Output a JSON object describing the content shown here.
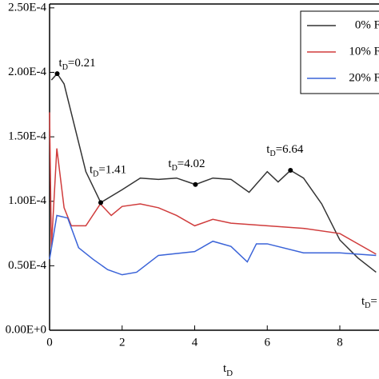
{
  "chart_data": {
    "type": "line",
    "x_label": {
      "base": "t",
      "sub": "D"
    },
    "xlim": [
      0,
      9.08
    ],
    "xticks": [
      0,
      2,
      4,
      6,
      8
    ],
    "ylim": [
      0,
      0.000253
    ],
    "yticks": [
      {
        "value": 0,
        "label": "0.00E+0"
      },
      {
        "value": 5e-05,
        "label": "0.50E-4"
      },
      {
        "value": 0.0001,
        "label": "1.00E-4"
      },
      {
        "value": 0.00015,
        "label": "1.50E-4"
      },
      {
        "value": 0.0002,
        "label": "2.00E-4"
      },
      {
        "value": 0.00025,
        "label": "2.50E-4"
      }
    ],
    "legend": "top-right",
    "series": [
      {
        "name": "0% F",
        "color": "#333333",
        "x": [
          0.05,
          0.21,
          0.4,
          0.7,
          1,
          1.41,
          2,
          2.5,
          3,
          3.5,
          4.02,
          4.5,
          5,
          5.5,
          6,
          6.3,
          6.64,
          7,
          7.5,
          8,
          8.5,
          9
        ],
        "values": [
          0.000194,
          0.000199,
          0.000191,
          0.000157,
          0.000123,
          9.9e-05,
          0.000109,
          0.000118,
          0.000117,
          0.000118,
          0.000113,
          0.000118,
          0.000117,
          0.000107,
          0.000123,
          0.000115,
          0.000124,
          0.000118,
          9.8e-05,
          7e-05,
          5.6e-05,
          4.5e-05
        ]
      },
      {
        "name": "10% F",
        "color": "#d03c3c",
        "x": [
          0,
          0.05,
          0.2,
          0.4,
          0.6,
          1,
          1.4,
          1.7,
          2,
          2.5,
          3,
          3.5,
          4,
          4.5,
          5,
          6,
          7,
          8,
          9
        ],
        "values": [
          0.000169,
          6.4e-05,
          0.000141,
          9.5e-05,
          8.1e-05,
          8.1e-05,
          9.8e-05,
          8.9e-05,
          9.6e-05,
          9.8e-05,
          9.5e-05,
          8.9e-05,
          8.1e-05,
          8.6e-05,
          8.3e-05,
          8.1e-05,
          7.9e-05,
          7.5e-05,
          5.9e-05
        ]
      },
      {
        "name": "20% F",
        "color": "#3a63d8",
        "x": [
          0,
          0.2,
          0.5,
          0.8,
          1.2,
          1.6,
          2,
          2.4,
          3,
          4,
          4.5,
          5,
          5.45,
          5.7,
          6,
          7,
          8,
          9
        ],
        "values": [
          5.5e-05,
          8.9e-05,
          8.7e-05,
          6.4e-05,
          5.5e-05,
          4.7e-05,
          4.3e-05,
          4.5e-05,
          5.8e-05,
          6.1e-05,
          6.9e-05,
          6.5e-05,
          5.3e-05,
          6.7e-05,
          6.7e-05,
          6e-05,
          6e-05,
          5.8e-05
        ]
      }
    ],
    "annotations": [
      {
        "base": "t",
        "sub": "D",
        "text": "=0.21",
        "x": 0.21,
        "y": 0.000199
      },
      {
        "base": "t",
        "sub": "D",
        "text": "=1.41",
        "x": 1.41,
        "y": 9.9e-05
      },
      {
        "base": "t",
        "sub": "D",
        "text": "=4.02",
        "x": 4.02,
        "y": 0.000113
      },
      {
        "base": "t",
        "sub": "D",
        "text": "=6.64",
        "x": 6.64,
        "y": 0.000124
      },
      {
        "base": "t",
        "sub": "D",
        "text": "="
      }
    ]
  }
}
